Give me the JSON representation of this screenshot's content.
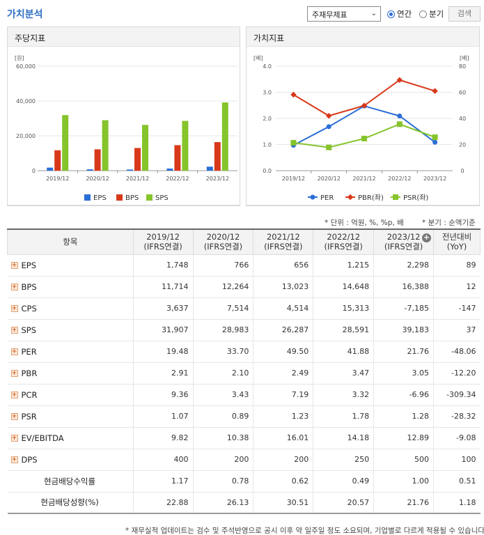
{
  "header": {
    "title": "가치분석",
    "select_value": "주재무제표",
    "radio_annual": "연간",
    "radio_quarter": "분기",
    "search_label": "검색"
  },
  "left_panel": {
    "title": "주당지표"
  },
  "right_panel": {
    "title": "가치지표"
  },
  "colors": {
    "eps": "#2b6fd6",
    "bps": "#d8391a",
    "sps": "#86c42c",
    "per": "#2b6fd6",
    "pbr": "#d8391a",
    "psr": "#86c42c"
  },
  "chart_data": [
    {
      "type": "bar",
      "unit_label": "[원]",
      "categories": [
        "2019/12",
        "2020/12",
        "2021/12",
        "2022/12",
        "2023/12"
      ],
      "ylim": [
        0,
        60000
      ],
      "yticks": [
        "60,000",
        "40,000",
        "20,000",
        "0"
      ],
      "series": [
        {
          "name": "EPS",
          "values": [
            1748,
            766,
            656,
            1215,
            2298
          ]
        },
        {
          "name": "BPS",
          "values": [
            11714,
            12264,
            13023,
            14648,
            16388
          ]
        },
        {
          "name": "SPS",
          "values": [
            31907,
            28983,
            26287,
            28591,
            39183
          ]
        }
      ],
      "legend": "bottom"
    },
    {
      "type": "line",
      "left_unit": "[배]",
      "right_unit": "[배]",
      "categories": [
        "2019/12",
        "2020/12",
        "2021/12",
        "2022/12",
        "2023/12"
      ],
      "ylim_left": [
        0,
        4
      ],
      "ylim_right": [
        0,
        80
      ],
      "left_ticks": [
        "4.0",
        "3.0",
        "2.0",
        "1.0",
        "0.0"
      ],
      "right_ticks": [
        "80",
        "60",
        "40",
        "20",
        "0"
      ],
      "series": [
        {
          "name": "PER",
          "axis": "right",
          "values": [
            19.48,
            33.7,
            49.5,
            41.88,
            21.76
          ]
        },
        {
          "name": "PBR(좌)",
          "axis": "left",
          "values": [
            2.91,
            2.1,
            2.49,
            3.47,
            3.05
          ]
        },
        {
          "name": "PSR(좌)",
          "axis": "left",
          "values": [
            1.07,
            0.89,
            1.23,
            1.78,
            1.28
          ]
        }
      ],
      "legend": "bottom"
    }
  ],
  "notes": {
    "unit": "* 단위 : 억원, %, %p, 배",
    "quarter": "* 분기 : 순액기준"
  },
  "table": {
    "item_header": "항목",
    "columns": [
      {
        "year": "2019/12",
        "basis": "(IFRS연결)"
      },
      {
        "year": "2020/12",
        "basis": "(IFRS연결)"
      },
      {
        "year": "2021/12",
        "basis": "(IFRS연결)"
      },
      {
        "year": "2022/12",
        "basis": "(IFRS연결)"
      },
      {
        "year": "2023/12",
        "basis": "(IFRS연결)"
      }
    ],
    "yoy_header_1": "전년대비",
    "yoy_header_2": "(YoY)",
    "rows": [
      {
        "label": "EPS",
        "vals": [
          "1,748",
          "766",
          "656",
          "1,215",
          "2,298"
        ],
        "yoy": "89"
      },
      {
        "label": "BPS",
        "vals": [
          "11,714",
          "12,264",
          "13,023",
          "14,648",
          "16,388"
        ],
        "yoy": "12"
      },
      {
        "label": "CPS",
        "vals": [
          "3,637",
          "7,514",
          "4,514",
          "15,313",
          "-7,185"
        ],
        "yoy": "-147"
      },
      {
        "label": "SPS",
        "vals": [
          "31,907",
          "28,983",
          "26,287",
          "28,591",
          "39,183"
        ],
        "yoy": "37"
      },
      {
        "label": "PER",
        "vals": [
          "19.48",
          "33.70",
          "49.50",
          "41.88",
          "21.76"
        ],
        "yoy": "-48.06"
      },
      {
        "label": "PBR",
        "vals": [
          "2.91",
          "2.10",
          "2.49",
          "3.47",
          "3.05"
        ],
        "yoy": "-12.20"
      },
      {
        "label": "PCR",
        "vals": [
          "9.36",
          "3.43",
          "7.19",
          "3.32",
          "-6.96"
        ],
        "yoy": "-309.34"
      },
      {
        "label": "PSR",
        "vals": [
          "1.07",
          "0.89",
          "1.23",
          "1.78",
          "1.28"
        ],
        "yoy": "-28.32"
      },
      {
        "label": "EV/EBITDA",
        "vals": [
          "9.82",
          "10.38",
          "16.01",
          "14.18",
          "12.89"
        ],
        "yoy": "-9.08"
      },
      {
        "label": "DPS",
        "vals": [
          "400",
          "200",
          "200",
          "250",
          "500"
        ],
        "yoy": "100"
      },
      {
        "label": "현금배당수익률",
        "vals": [
          "1.17",
          "0.78",
          "0.62",
          "0.49",
          "1.00"
        ],
        "yoy": "0.51",
        "noicon": true
      },
      {
        "label": "현금배당성향(%)",
        "vals": [
          "22.88",
          "26.13",
          "30.51",
          "20.57",
          "21.76"
        ],
        "yoy": "1.18",
        "noicon": true
      }
    ]
  },
  "footer": "* 재무실적 업데이트는 검수 및 주석반영으로 공시 이후 약 일주일 정도 소요되며, 기업별로 다르게 적용될 수 있습니다."
}
